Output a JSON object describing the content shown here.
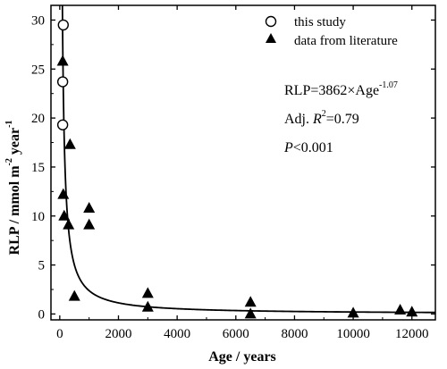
{
  "chart_data": {
    "type": "scatter",
    "xlabel": "Age / years",
    "ylabel": "RLP / mmol m",
    "ylabel_sup1": "-2",
    "ylabel_mid": " year",
    "ylabel_sup2": "-1",
    "xlim": [
      -300,
      12800
    ],
    "ylim": [
      -0.6,
      31.5
    ],
    "xticks": [
      0,
      2000,
      4000,
      6000,
      8000,
      10000,
      12000
    ],
    "yticks": [
      0,
      5,
      10,
      15,
      20,
      25,
      30
    ],
    "xtick_labels": [
      "0",
      "2000",
      "4000",
      "6000",
      "8000",
      "10000",
      "12000"
    ],
    "ytick_labels": [
      "0",
      "5",
      "10",
      "15",
      "20",
      "25",
      "30"
    ],
    "legend_position": "top-right",
    "series": [
      {
        "name": "this study",
        "marker": "open-circle",
        "x": [
          120,
          100,
          100
        ],
        "y": [
          29.5,
          23.7,
          19.3
        ]
      },
      {
        "name": "data from literature",
        "marker": "filled-triangle",
        "x": [
          100,
          120,
          150,
          300,
          350,
          500,
          1000,
          1000,
          3000,
          3000,
          6500,
          6500,
          10000,
          11600,
          12000
        ],
        "y": [
          25.8,
          12.2,
          10.0,
          9.1,
          17.3,
          1.8,
          10.8,
          9.1,
          2.1,
          0.7,
          1.2,
          0.0,
          0.1,
          0.4,
          0.2
        ]
      }
    ],
    "fit": {
      "coefficient": 3862,
      "exponent": -1.07
    },
    "annotations": {
      "equation_main": "RLP=3862×Age",
      "equation_exp": "-1.07",
      "r2_prefix": "Adj. ",
      "r2_r": "R",
      "r2_sup": "2",
      "r2_suffix": "=0.79",
      "p_letter": "P",
      "p_suffix": "<0.001"
    }
  }
}
